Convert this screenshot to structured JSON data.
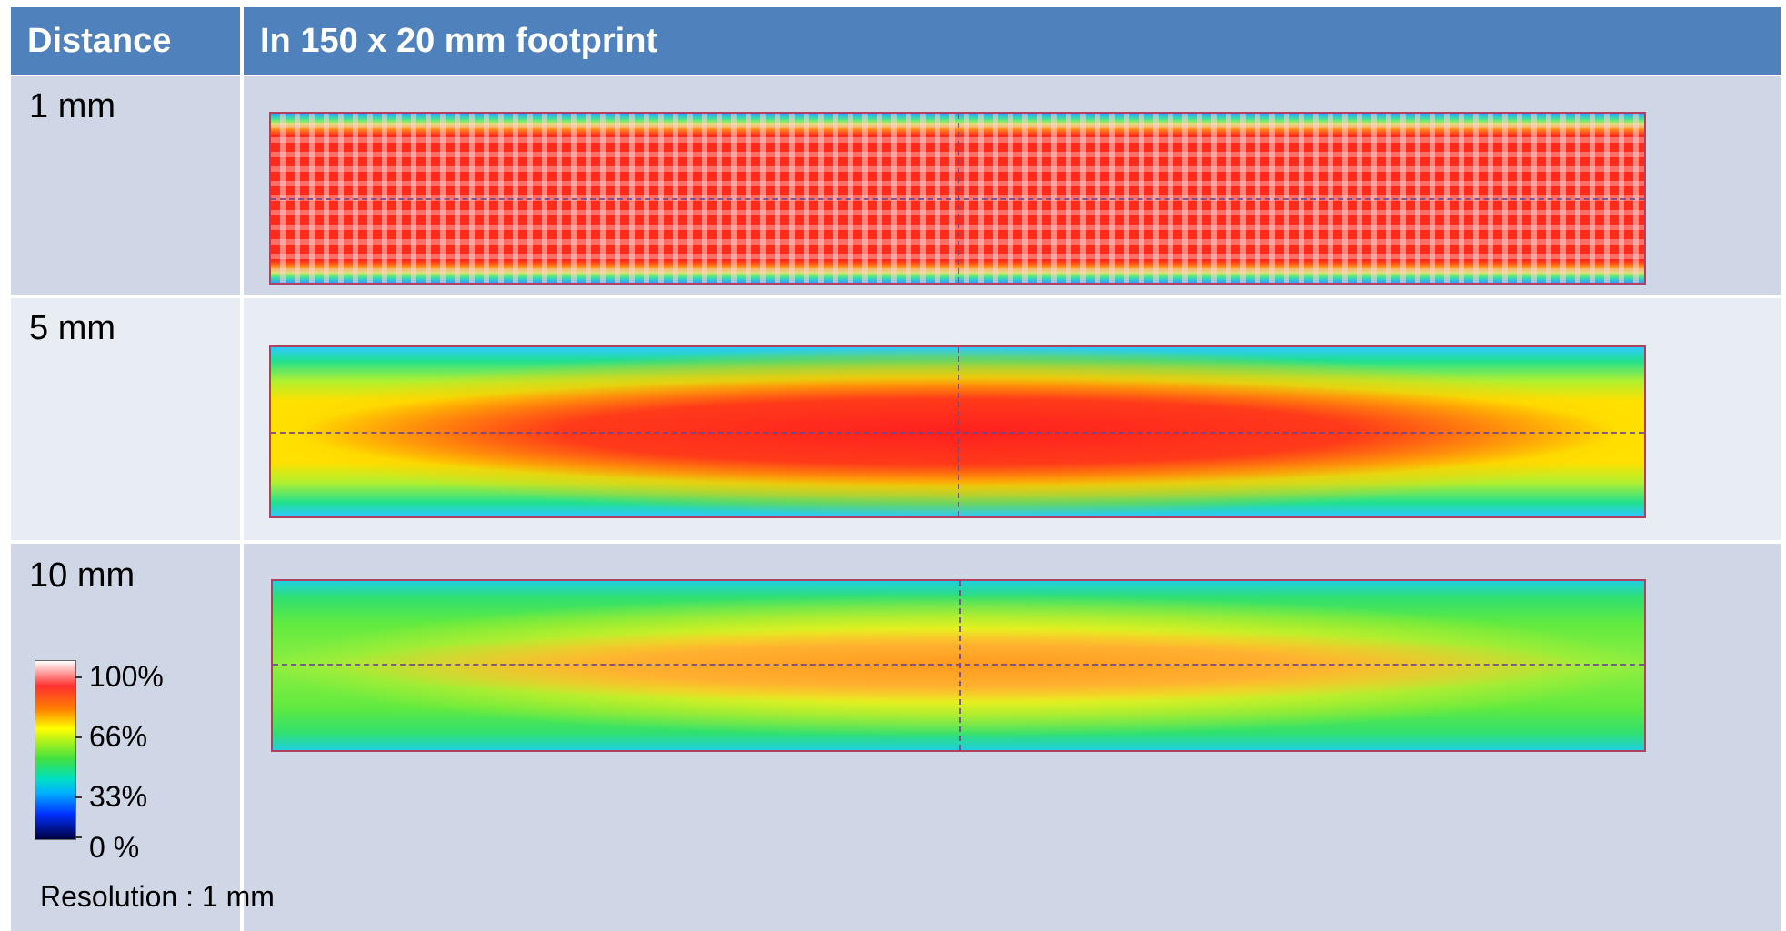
{
  "table": {
    "header": {
      "col1": "Distance",
      "col2": "In 150 x 20 mm footprint"
    },
    "rows": [
      {
        "distance": "1 mm"
      },
      {
        "distance": "5 mm"
      },
      {
        "distance": "10 mm"
      }
    ]
  },
  "legend": {
    "labels": [
      "100%",
      "66%",
      "33%",
      "0 %"
    ],
    "resolution": "Resolution : 1 mm"
  },
  "colors": {
    "header_bg": "#4f81bd",
    "row_alt1": "#cfd7e6",
    "row_alt2": "#e8ecf3"
  }
}
